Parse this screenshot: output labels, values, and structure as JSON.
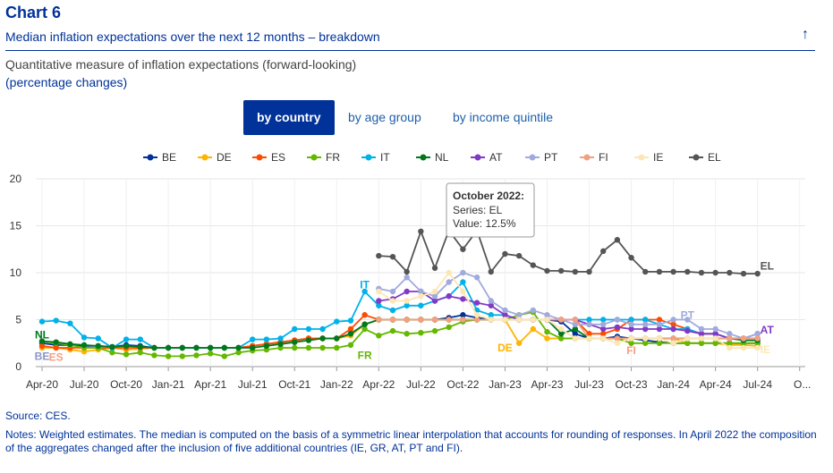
{
  "header": {
    "title": "Chart 6",
    "subtitle": "Median inflation expectations over the next 12 months – breakdown",
    "arrow_icon": "arrow-up-icon"
  },
  "measure": "Quantitative measure of inflation expectations (forward-looking)",
  "units": "(percentage changes)",
  "tabs": [
    {
      "label": "by country",
      "active": true
    },
    {
      "label": "by age group",
      "active": false
    },
    {
      "label": "by income quintile",
      "active": false
    }
  ],
  "tooltip": {
    "title": "October 2022:",
    "series": "Series: EL",
    "value": "Value: 12.5%"
  },
  "source": "Source: CES.",
  "notes": "Notes: Weighted estimates. The median is computed on the basis of a symmetric linear interpolation that accounts for rounding of responses. In April 2022 the composition of the aggregates changed after the inclusion of five additional countries (IE, GR, AT, PT and FI).",
  "chart_data": {
    "type": "line",
    "title": "",
    "xlabel": "",
    "ylabel": "",
    "ylim": [
      0,
      20
    ],
    "yticks": [
      "0",
      "5",
      "10",
      "15",
      "20"
    ],
    "xticks": [
      "Apr-20",
      "Jul-20",
      "Oct-20",
      "Jan-21",
      "Apr-21",
      "Jul-21",
      "Oct-21",
      "Jan-22",
      "Apr-22",
      "Jul-22",
      "Oct-22",
      "Jan-23",
      "Apr-23",
      "Jul-23",
      "Oct-23",
      "Jan-24",
      "Apr-24",
      "Jul-24",
      "O..."
    ],
    "grid": true,
    "legend_position": "top",
    "x": [
      "Apr-20",
      "May-20",
      "Jun-20",
      "Jul-20",
      "Aug-20",
      "Sep-20",
      "Oct-20",
      "Nov-20",
      "Dec-20",
      "Jan-21",
      "Feb-21",
      "Mar-21",
      "Apr-21",
      "May-21",
      "Jun-21",
      "Jul-21",
      "Aug-21",
      "Sep-21",
      "Oct-21",
      "Nov-21",
      "Dec-21",
      "Jan-22",
      "Feb-22",
      "Mar-22",
      "Apr-22",
      "May-22",
      "Jun-22",
      "Jul-22",
      "Aug-22",
      "Sep-22",
      "Oct-22",
      "Nov-22",
      "Dec-22",
      "Jan-23",
      "Feb-23",
      "Mar-23",
      "Apr-23",
      "May-23",
      "Jun-23",
      "Jul-23",
      "Aug-23",
      "Sep-23",
      "Oct-23",
      "Nov-23",
      "Dec-23",
      "Jan-24",
      "Feb-24",
      "Mar-24",
      "Apr-24",
      "May-24",
      "Jun-24",
      "Jul-24"
    ],
    "series": [
      {
        "name": "BE",
        "color": "#003299",
        "label": "BE",
        "values": [
          2.5,
          2.3,
          2.3,
          2.2,
          2.2,
          2.1,
          2.3,
          2.2,
          2.0,
          2.0,
          2.0,
          2.0,
          2.0,
          2.0,
          2.0,
          2.2,
          2.4,
          2.6,
          2.8,
          3.0,
          3.0,
          3.0,
          3.5,
          4.5,
          5.0,
          5.0,
          5.0,
          5.0,
          5.0,
          5.2,
          5.5,
          5.2,
          5.0,
          5.0,
          5.0,
          5.0,
          5.0,
          4.8,
          3.5,
          3.0,
          3.0,
          3.2,
          3.0,
          2.8,
          2.6,
          2.5,
          2.5,
          2.5,
          2.5,
          2.5,
          2.5,
          2.5
        ]
      },
      {
        "name": "DE",
        "color": "#ffb400",
        "label": "DE",
        "values": [
          2.0,
          2.0,
          1.8,
          1.6,
          1.8,
          2.0,
          1.8,
          1.9,
          2.0,
          2.0,
          2.0,
          2.0,
          2.0,
          2.0,
          2.0,
          2.2,
          2.4,
          2.6,
          2.8,
          3.0,
          3.0,
          3.0,
          3.3,
          4.5,
          5.0,
          5.0,
          5.0,
          5.0,
          5.0,
          5.0,
          5.0,
          5.0,
          5.0,
          5.0,
          2.5,
          4.0,
          3.0,
          3.0,
          3.0,
          3.0,
          3.0,
          3.0,
          3.0,
          3.0,
          3.0,
          3.0,
          2.5,
          2.5,
          2.5,
          2.3,
          2.3,
          2.2
        ]
      },
      {
        "name": "ES",
        "color": "#ff4b00",
        "label": "ES",
        "values": [
          2.2,
          2.0,
          2.0,
          2.0,
          2.0,
          2.0,
          2.0,
          2.0,
          2.0,
          2.0,
          2.0,
          2.0,
          2.0,
          2.0,
          2.0,
          2.2,
          2.4,
          2.6,
          2.8,
          3.0,
          3.0,
          3.0,
          4.0,
          5.5,
          5.0,
          5.0,
          5.0,
          5.0,
          5.0,
          5.0,
          5.0,
          5.0,
          5.0,
          5.0,
          5.0,
          5.0,
          5.0,
          5.0,
          5.0,
          3.5,
          3.5,
          4.0,
          5.0,
          5.0,
          5.0,
          4.5,
          4.0,
          3.5,
          3.5,
          3.0,
          3.0,
          3.0
        ]
      },
      {
        "name": "FR",
        "color": "#65b800",
        "label": "FR",
        "values": [
          2.7,
          2.5,
          2.3,
          2.0,
          2.0,
          1.5,
          1.3,
          1.5,
          1.2,
          1.1,
          1.1,
          1.2,
          1.4,
          1.1,
          1.5,
          1.7,
          1.8,
          2.0,
          2.0,
          2.0,
          2.0,
          2.0,
          2.3,
          4.0,
          3.3,
          3.8,
          3.5,
          3.6,
          3.8,
          4.2,
          4.8,
          5.0,
          5.0,
          5.0,
          5.5,
          5.8,
          3.7,
          3.0,
          3.0,
          3.0,
          3.0,
          3.0,
          2.5,
          2.5,
          2.5,
          2.5,
          2.5,
          2.5,
          2.5,
          2.5,
          2.5,
          2.5
        ]
      },
      {
        "name": "IT",
        "color": "#00b1ea",
        "label": "IT",
        "values": [
          4.8,
          4.9,
          4.6,
          3.1,
          3.0,
          2.0,
          2.9,
          2.9,
          2.0,
          2.0,
          2.0,
          2.0,
          2.0,
          2.0,
          2.0,
          2.9,
          2.9,
          3.0,
          4.0,
          4.0,
          4.0,
          4.8,
          4.9,
          8.0,
          6.5,
          6.0,
          6.5,
          6.5,
          7.0,
          7.5,
          9.0,
          6.0,
          5.5,
          5.5,
          5.0,
          5.0,
          5.0,
          5.0,
          5.0,
          5.0,
          5.0,
          5.0,
          5.0,
          5.0,
          4.5,
          4.0,
          4.0,
          3.5,
          3.5,
          3.0,
          3.0,
          3.0
        ]
      },
      {
        "name": "NL",
        "color": "#00781e",
        "label": "NL",
        "values": [
          2.7,
          2.6,
          2.4,
          2.3,
          2.2,
          2.1,
          2.2,
          2.1,
          2.0,
          2.0,
          2.0,
          2.0,
          2.0,
          2.0,
          2.0,
          2.0,
          2.2,
          2.4,
          2.6,
          2.8,
          3.0,
          3.0,
          3.5,
          4.5,
          5.0,
          5.0,
          5.0,
          5.0,
          5.0,
          5.0,
          5.0,
          5.0,
          5.0,
          5.0,
          5.0,
          5.0,
          5.0,
          3.5,
          4.0,
          3.0,
          3.0,
          3.0,
          3.0,
          3.0,
          3.0,
          3.0,
          3.0,
          3.0,
          3.0,
          3.0,
          2.8,
          2.8
        ]
      },
      {
        "name": "AT",
        "color": "#8139c6",
        "label": "AT",
        "values": [
          null,
          null,
          null,
          null,
          null,
          null,
          null,
          null,
          null,
          null,
          null,
          null,
          null,
          null,
          null,
          null,
          null,
          null,
          null,
          null,
          null,
          null,
          null,
          null,
          7.0,
          7.2,
          8.0,
          8.0,
          7.0,
          7.5,
          7.2,
          6.8,
          6.5,
          5.5,
          5.0,
          5.0,
          5.0,
          5.0,
          5.0,
          4.5,
          4.0,
          4.2,
          4.0,
          4.0,
          4.0,
          4.0,
          3.8,
          3.5,
          3.5,
          3.0,
          3.0,
          3.5
        ]
      },
      {
        "name": "PT",
        "color": "#a0aadc",
        "label": "PT",
        "values": [
          null,
          null,
          null,
          null,
          null,
          null,
          null,
          null,
          null,
          null,
          null,
          null,
          null,
          null,
          null,
          null,
          null,
          null,
          null,
          null,
          null,
          null,
          null,
          null,
          8.3,
          8.0,
          9.5,
          8.0,
          7.5,
          9.0,
          10.0,
          9.5,
          7.0,
          6.0,
          5.5,
          6.0,
          5.5,
          5.0,
          4.5,
          4.5,
          4.5,
          5.0,
          4.5,
          4.5,
          4.5,
          5.0,
          5.0,
          4.0,
          4.0,
          3.5,
          3.0,
          3.5
        ]
      },
      {
        "name": "FI",
        "color": "#f3a080",
        "label": "FI",
        "values": [
          null,
          null,
          null,
          null,
          null,
          null,
          null,
          null,
          null,
          null,
          null,
          null,
          null,
          null,
          null,
          null,
          null,
          null,
          null,
          null,
          null,
          null,
          null,
          null,
          5.0,
          5.0,
          5.0,
          5.0,
          5.0,
          5.0,
          5.0,
          5.0,
          5.0,
          5.0,
          5.0,
          5.0,
          5.0,
          5.0,
          5.0,
          3.0,
          3.0,
          3.0,
          3.0,
          3.0,
          3.0,
          3.0,
          3.0,
          3.0,
          3.0,
          3.0,
          3.0,
          3.0
        ]
      },
      {
        "name": "IE",
        "color": "#fce7b4",
        "label": "IE",
        "values": [
          null,
          null,
          null,
          null,
          null,
          null,
          null,
          null,
          null,
          null,
          null,
          null,
          null,
          null,
          null,
          null,
          null,
          null,
          null,
          null,
          null,
          null,
          null,
          null,
          8.0,
          7.0,
          7.0,
          7.5,
          8.0,
          10.0,
          8.0,
          5.5,
          5.0,
          5.0,
          5.0,
          5.0,
          5.0,
          4.0,
          3.0,
          3.0,
          3.0,
          2.5,
          3.0,
          3.0,
          3.0,
          2.5,
          3.0,
          3.0,
          3.0,
          2.0,
          2.0,
          2.0
        ]
      },
      {
        "name": "EL",
        "color": "#555555",
        "label": "EL",
        "values": [
          null,
          null,
          null,
          null,
          null,
          null,
          null,
          null,
          null,
          null,
          null,
          null,
          null,
          null,
          null,
          null,
          null,
          null,
          null,
          null,
          null,
          null,
          null,
          null,
          11.8,
          11.7,
          10.1,
          14.4,
          10.5,
          14.5,
          12.5,
          14.5,
          10.1,
          12.0,
          11.8,
          10.8,
          10.2,
          10.2,
          10.1,
          10.1,
          12.3,
          13.5,
          11.6,
          10.1,
          10.1,
          10.1,
          10.1,
          10.0,
          10.0,
          10.0,
          9.9,
          9.9
        ]
      }
    ],
    "annotations": [
      {
        "text": "NL",
        "color": "#00781e",
        "x": "Apr-20",
        "y": 3.4
      },
      {
        "text": "BE",
        "color": "#8b96c8",
        "x": "Apr-20",
        "y": 1.1
      },
      {
        "text": "ES",
        "color": "#f3a080",
        "x": "May-20",
        "y": 1.0
      },
      {
        "text": "IT",
        "color": "#00b1ea",
        "x": "Mar-22",
        "y": 8.7
      },
      {
        "text": "FR",
        "color": "#65b800",
        "x": "Mar-22",
        "y": 1.2
      },
      {
        "text": "DE",
        "color": "#ffb400",
        "x": "Jan-23",
        "y": 2.0
      },
      {
        "text": "FI",
        "color": "#f3a080",
        "x": "Oct-23",
        "y": 1.7
      },
      {
        "text": "PT",
        "color": "#a0aadc",
        "x": "Feb-24",
        "y": 5.5
      },
      {
        "text": "EL",
        "color": "#555555",
        "x": "Jul-24",
        "y": 10.7
      },
      {
        "text": "AT",
        "color": "#8139c6",
        "x": "Jul-24",
        "y": 3.9
      },
      {
        "text": "IE",
        "color": "#fce7b4",
        "x": "Jul-24",
        "y": 1.8
      }
    ]
  }
}
